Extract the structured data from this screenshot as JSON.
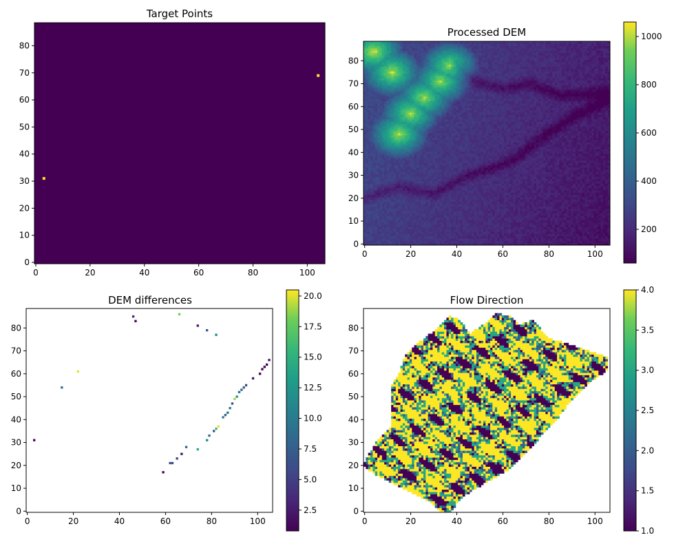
{
  "colors": {
    "viridis_low": "#440154",
    "viridis_mid": "#21918c",
    "viridis_high": "#fde725",
    "background": "#ffffff"
  },
  "chart_data": [
    {
      "id": "target-points",
      "type": "heatmap",
      "title": "Target Points",
      "xlabel": "",
      "ylabel": "",
      "xlim": [
        0,
        106
      ],
      "ylim": [
        0,
        88
      ],
      "xticks": [
        0,
        20,
        40,
        60,
        80,
        100
      ],
      "yticks": [
        0,
        10,
        20,
        30,
        40,
        50,
        60,
        70,
        80
      ],
      "colorbar": false,
      "background": "#440154",
      "points": [
        {
          "x": 3,
          "y": 31,
          "value": 1
        },
        {
          "x": 104,
          "y": 69,
          "value": 1
        }
      ]
    },
    {
      "id": "processed-dem",
      "type": "heatmap",
      "title": "Processed DEM",
      "xlabel": "",
      "ylabel": "",
      "xlim": [
        0,
        106
      ],
      "ylim": [
        0,
        88
      ],
      "xticks": [
        0,
        20,
        40,
        60,
        80,
        100
      ],
      "yticks": [
        0,
        10,
        20,
        30,
        40,
        50,
        60,
        70,
        80
      ],
      "colorbar": true,
      "vmin": 60,
      "vmax": 1060,
      "colorbar_ticks": [
        200,
        400,
        600,
        800,
        1000
      ],
      "high_ridge": [
        {
          "x": 15,
          "y": 48
        },
        {
          "x": 20,
          "y": 57
        },
        {
          "x": 26,
          "y": 64
        },
        {
          "x": 33,
          "y": 71
        },
        {
          "x": 37,
          "y": 78
        },
        {
          "x": 12,
          "y": 75
        },
        {
          "x": 4,
          "y": 84
        }
      ],
      "valley_paths": [
        [
          [
            0,
            20
          ],
          [
            15,
            25
          ],
          [
            30,
            22
          ],
          [
            45,
            30
          ],
          [
            55,
            33
          ],
          [
            65,
            37
          ],
          [
            75,
            45
          ],
          [
            85,
            52
          ],
          [
            95,
            58
          ],
          [
            106,
            63
          ]
        ],
        [
          [
            40,
            78
          ],
          [
            50,
            70
          ],
          [
            60,
            68
          ],
          [
            72,
            70
          ],
          [
            85,
            65
          ],
          [
            106,
            66
          ]
        ]
      ]
    },
    {
      "id": "dem-differences",
      "type": "heatmap",
      "title": "DEM differences",
      "xlabel": "",
      "ylabel": "",
      "xlim": [
        0,
        106
      ],
      "ylim": [
        0,
        88
      ],
      "xticks": [
        0,
        20,
        40,
        60,
        80,
        100
      ],
      "yticks": [
        0,
        10,
        20,
        30,
        40,
        50,
        60,
        70,
        80
      ],
      "colorbar": true,
      "vmin": 0.8,
      "vmax": 20.5,
      "colorbar_ticks": [
        2.5,
        5.0,
        7.5,
        10.0,
        12.5,
        15.0,
        17.5,
        20.0
      ],
      "colorbar_labels": [
        "2.5",
        "5.0",
        "7.5",
        "10.0",
        "12.5",
        "15.0",
        "17.5",
        "20.0"
      ],
      "background": "#ffffff",
      "cells": [
        {
          "x": 3,
          "y": 31,
          "v": 1
        },
        {
          "x": 15,
          "y": 54,
          "v": 9
        },
        {
          "x": 22,
          "y": 61,
          "v": 20
        },
        {
          "x": 46,
          "y": 85,
          "v": 3
        },
        {
          "x": 47,
          "y": 83,
          "v": 1
        },
        {
          "x": 66,
          "y": 86,
          "v": 18
        },
        {
          "x": 74,
          "y": 81,
          "v": 2
        },
        {
          "x": 78,
          "y": 79,
          "v": 7
        },
        {
          "x": 82,
          "y": 77,
          "v": 12
        },
        {
          "x": 59,
          "y": 17,
          "v": 1
        },
        {
          "x": 62,
          "y": 21,
          "v": 6
        },
        {
          "x": 63,
          "y": 21,
          "v": 6
        },
        {
          "x": 65,
          "y": 23,
          "v": 5
        },
        {
          "x": 67,
          "y": 25,
          "v": 2
        },
        {
          "x": 69,
          "y": 28,
          "v": 8
        },
        {
          "x": 74,
          "y": 27,
          "v": 14
        },
        {
          "x": 78,
          "y": 31,
          "v": 12
        },
        {
          "x": 79,
          "y": 33,
          "v": 9
        },
        {
          "x": 81,
          "y": 35,
          "v": 7
        },
        {
          "x": 82,
          "y": 36,
          "v": 16
        },
        {
          "x": 83,
          "y": 37,
          "v": 20
        },
        {
          "x": 85,
          "y": 41,
          "v": 10
        },
        {
          "x": 86,
          "y": 42,
          "v": 8
        },
        {
          "x": 87,
          "y": 43,
          "v": 9
        },
        {
          "x": 88,
          "y": 45,
          "v": 10
        },
        {
          "x": 89,
          "y": 47,
          "v": 6
        },
        {
          "x": 90,
          "y": 49,
          "v": 19
        },
        {
          "x": 91,
          "y": 50,
          "v": 12
        },
        {
          "x": 92,
          "y": 52,
          "v": 9
        },
        {
          "x": 93,
          "y": 53,
          "v": 8
        },
        {
          "x": 94,
          "y": 54,
          "v": 7
        },
        {
          "x": 95,
          "y": 55,
          "v": 6
        },
        {
          "x": 98,
          "y": 58,
          "v": 2
        },
        {
          "x": 101,
          "y": 60,
          "v": 1
        },
        {
          "x": 102,
          "y": 62,
          "v": 1
        },
        {
          "x": 103,
          "y": 63,
          "v": 1
        },
        {
          "x": 104,
          "y": 64,
          "v": 1
        },
        {
          "x": 105,
          "y": 66,
          "v": 2
        }
      ]
    },
    {
      "id": "flow-direction",
      "type": "heatmap",
      "title": "Flow Direction",
      "xlabel": "",
      "ylabel": "",
      "xlim": [
        0,
        106
      ],
      "ylim": [
        0,
        88
      ],
      "xticks": [
        0,
        20,
        40,
        60,
        80,
        100
      ],
      "yticks": [
        0,
        10,
        20,
        30,
        40,
        50,
        60,
        70,
        80
      ],
      "colorbar": true,
      "vmin": 1,
      "vmax": 4,
      "colorbar_ticks": [
        1.0,
        1.5,
        2.0,
        2.5,
        3.0,
        3.5,
        4.0
      ],
      "colorbar_labels": [
        "1.0",
        "1.5",
        "2.0",
        "2.5",
        "3.0",
        "3.5",
        "4.0"
      ],
      "background": "#ffffff",
      "levels": [
        1,
        2,
        3,
        4
      ],
      "basin_outline": [
        [
          0,
          21
        ],
        [
          5,
          30
        ],
        [
          12,
          38
        ],
        [
          12,
          55
        ],
        [
          15,
          60
        ],
        [
          18,
          68
        ],
        [
          25,
          75
        ],
        [
          32,
          80
        ],
        [
          37,
          86
        ],
        [
          42,
          84
        ],
        [
          46,
          78
        ],
        [
          52,
          82
        ],
        [
          58,
          87
        ],
        [
          63,
          86
        ],
        [
          68,
          82
        ],
        [
          74,
          84
        ],
        [
          80,
          76
        ],
        [
          88,
          74
        ],
        [
          100,
          70
        ],
        [
          106,
          68
        ],
        [
          106,
          62
        ],
        [
          100,
          58
        ],
        [
          93,
          52
        ],
        [
          88,
          46
        ],
        [
          82,
          38
        ],
        [
          76,
          32
        ],
        [
          70,
          25
        ],
        [
          62,
          18
        ],
        [
          55,
          14
        ],
        [
          48,
          10
        ],
        [
          42,
          6
        ],
        [
          38,
          0
        ],
        [
          34,
          0
        ],
        [
          30,
          4
        ],
        [
          22,
          8
        ],
        [
          14,
          12
        ],
        [
          8,
          15
        ],
        [
          3,
          18
        ]
      ]
    }
  ]
}
